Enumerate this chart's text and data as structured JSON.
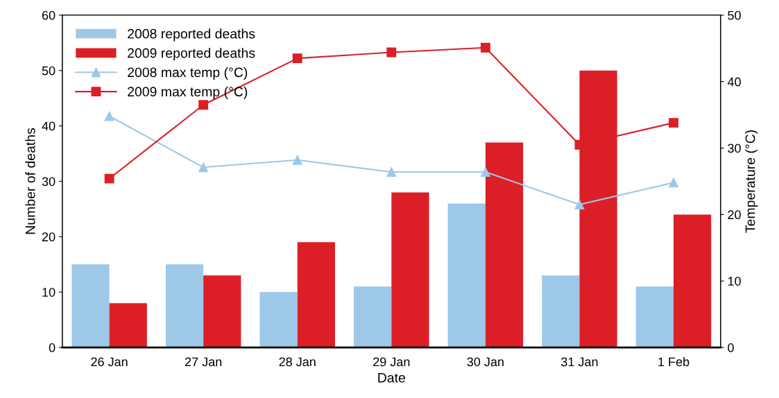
{
  "chart_data": {
    "type": "bar",
    "xlabel": "Date",
    "ylabel": "Number of deaths",
    "y2label": "Temperature (°C)",
    "categories": [
      "26 Jan",
      "27 Jan",
      "28 Jan",
      "29 Jan",
      "30 Jan",
      "31 Jan",
      "1 Feb"
    ],
    "series": [
      {
        "name": "2008 reported deaths",
        "color": "#9dc8e8",
        "values": [
          15,
          15,
          10,
          11,
          26,
          13,
          11
        ]
      },
      {
        "name": "2009 reported deaths",
        "color": "#dc1f26",
        "values": [
          8,
          13,
          19,
          28,
          37,
          50,
          24
        ]
      },
      {
        "name": "2008 max temp (°C)",
        "type": "line",
        "axis": "y2",
        "marker": "triangle",
        "color": "#9dc8e8",
        "values": [
          34.8,
          27.1,
          28.2,
          26.4,
          26.4,
          21.5,
          24.8
        ]
      },
      {
        "name": "2009 max temp (°C)",
        "type": "line",
        "axis": "y2",
        "marker": "square",
        "color": "#dc1f26",
        "values": [
          25.4,
          36.5,
          43.5,
          44.4,
          45.1,
          30.5,
          33.8
        ]
      }
    ],
    "ylim": [
      0,
      60
    ],
    "yticks": [
      0,
      10,
      20,
      30,
      40,
      50,
      60
    ],
    "y2lim": [
      0,
      50
    ],
    "y2ticks": [
      0,
      10,
      20,
      30,
      40,
      50
    ],
    "legend": "top left",
    "grid": false
  }
}
